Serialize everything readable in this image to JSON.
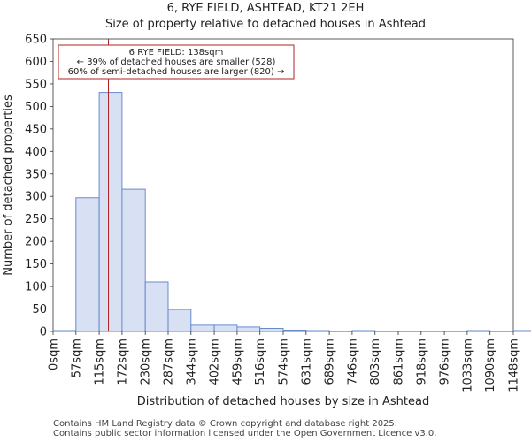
{
  "chart_data": {
    "type": "bar",
    "title": "6, RYE FIELD, ASHTEAD, KT21 2EH",
    "subtitle": "Size of property relative to detached houses in Ashtead",
    "xlabel": "Distribution of detached houses by size in Ashtead",
    "ylabel": "Number of detached properties",
    "categories": [
      "0sqm",
      "57sqm",
      "115sqm",
      "172sqm",
      "230sqm",
      "287sqm",
      "344sqm",
      "402sqm",
      "459sqm",
      "516sqm",
      "574sqm",
      "631sqm",
      "689sqm",
      "746sqm",
      "803sqm",
      "861sqm",
      "918sqm",
      "976sqm",
      "1033sqm",
      "1090sqm",
      "1148sqm"
    ],
    "bin_edges": [
      0,
      57,
      115,
      172,
      230,
      287,
      344,
      402,
      459,
      516,
      574,
      631,
      689,
      746,
      803,
      861,
      918,
      976,
      1033,
      1090,
      1148
    ],
    "values": [
      2,
      297,
      531,
      316,
      110,
      49,
      14,
      14,
      10,
      7,
      3,
      2,
      0,
      2,
      0,
      0,
      0,
      0,
      2,
      0,
      2
    ],
    "ylim": [
      0,
      650
    ],
    "yticks": [
      0,
      50,
      100,
      150,
      200,
      250,
      300,
      350,
      400,
      450,
      500,
      550,
      600,
      650
    ],
    "property_marker": 138,
    "annotation": {
      "line1": "6 RYE FIELD: 138sqm",
      "line2": "← 39% of detached houses are smaller (528)",
      "line3": "60% of semi-detached houses are larger (820) →"
    },
    "colors": {
      "bar_fill": "#d8e1f3",
      "bar_edge": "#5a80c8",
      "marker": "#b22222"
    }
  },
  "footer": {
    "line1": "Contains HM Land Registry data © Crown copyright and database right 2025.",
    "line2": "Contains public sector information licensed under the Open Government Licence v3.0."
  }
}
